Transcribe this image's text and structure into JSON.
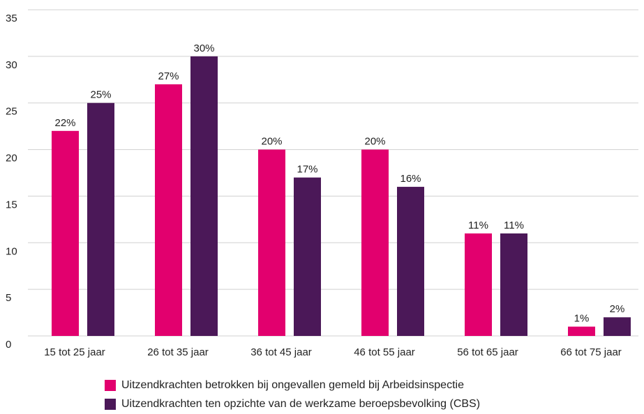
{
  "chart_data": {
    "type": "bar",
    "categories": [
      "15 tot 25 jaar",
      "26 tot 35 jaar",
      "36 tot 45 jaar",
      "46 tot 55 jaar",
      "56 tot 65 jaar",
      "66 tot 75 jaar"
    ],
    "series": [
      {
        "name": "Uitzendkrachten betrokken bij ongevallen gemeld bij Arbeidsinspectie",
        "color": "#e2006e",
        "values": [
          22,
          27,
          20,
          20,
          11,
          1
        ],
        "value_labels": [
          "22%",
          "27%",
          "20%",
          "20%",
          "11%",
          "1%"
        ]
      },
      {
        "name": "Uitzendkrachten ten opzichte van de werkzame beroepsbevolking (CBS)",
        "color": "#4b1858",
        "values": [
          25,
          30,
          17,
          16,
          11,
          2
        ],
        "value_labels": [
          "25%",
          "30%",
          "17%",
          "16%",
          "11%",
          "2%"
        ]
      }
    ],
    "ylim": [
      0,
      35
    ],
    "yticks": [
      0,
      5,
      10,
      15,
      20,
      25,
      30,
      35
    ],
    "grid": true
  }
}
